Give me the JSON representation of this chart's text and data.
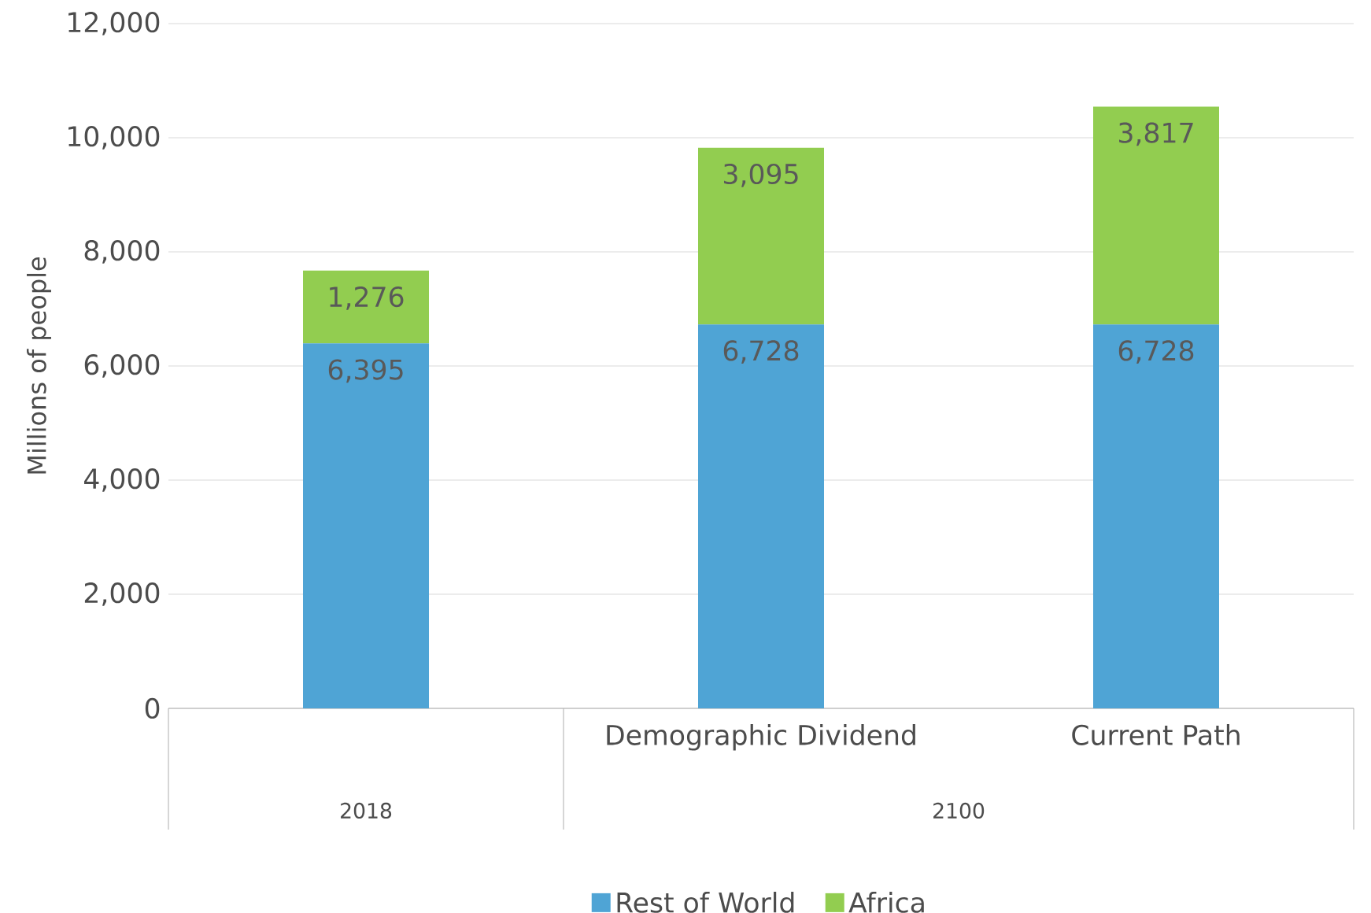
{
  "chart_data": {
    "type": "bar",
    "stacked": true,
    "ylabel": "Millions of people",
    "categories": [
      null,
      "Demographic Dividend",
      "Current Path"
    ],
    "series": [
      {
        "name": "Rest of World",
        "color": "#4fa4d5",
        "values": [
          6395,
          6728,
          6728
        ],
        "value_labels": [
          "6,395",
          "6,728",
          "6,728"
        ]
      },
      {
        "name": "Africa",
        "color": "#92cd50",
        "values": [
          1276,
          3095,
          3817
        ],
        "value_labels": [
          "1,276",
          "3,095",
          "3,817"
        ]
      }
    ],
    "ylim": [
      0,
      12000
    ],
    "yticks": [
      {
        "value": 0,
        "label": "0"
      },
      {
        "value": 2000,
        "label": "2,000"
      },
      {
        "value": 4000,
        "label": "4,000"
      },
      {
        "value": 6000,
        "label": "6,000"
      },
      {
        "value": 8000,
        "label": "8,000"
      },
      {
        "value": 10000,
        "label": "10,000"
      },
      {
        "value": 12000,
        "label": "12,000"
      }
    ],
    "grid": "y",
    "legend": "bottom",
    "annotations": [
      "2018",
      "2100"
    ]
  }
}
